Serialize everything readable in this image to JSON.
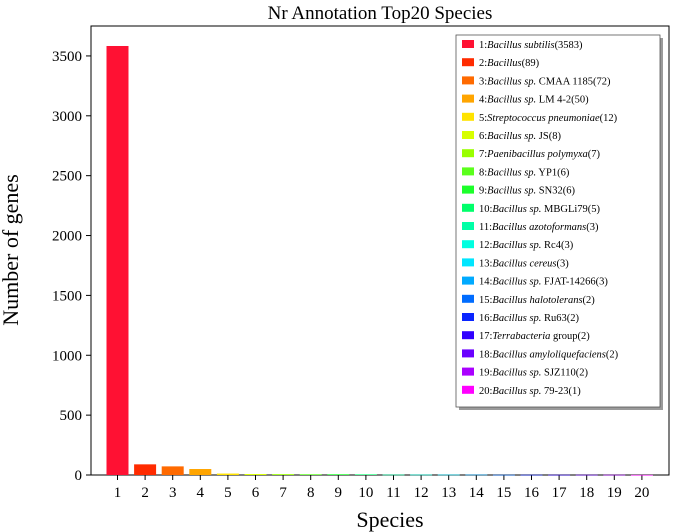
{
  "chart_data": {
    "type": "bar",
    "title": "Nr Annotation Top20 Species",
    "xlabel": "Species",
    "ylabel": "Number of genes",
    "ylim": [
      0,
      3750
    ],
    "yticks": [
      0,
      500,
      1000,
      1500,
      2000,
      2500,
      3000,
      3500
    ],
    "categories": [
      "1",
      "2",
      "3",
      "4",
      "5",
      "6",
      "7",
      "8",
      "9",
      "10",
      "11",
      "12",
      "13",
      "14",
      "15",
      "16",
      "17",
      "18",
      "19",
      "20"
    ],
    "values": [
      3583,
      89,
      72,
      50,
      12,
      8,
      7,
      6,
      6,
      5,
      3,
      3,
      3,
      3,
      2,
      2,
      2,
      2,
      2,
      1
    ],
    "colors": [
      "#ff1133",
      "#ff2b00",
      "#ff6a00",
      "#ffa500",
      "#ffe300",
      "#d7ff00",
      "#99ff00",
      "#5bff1c",
      "#1cff2a",
      "#00ff6a",
      "#00ffa6",
      "#00ffe0",
      "#00e6ff",
      "#00aaff",
      "#006cff",
      "#0a25ff",
      "#3000ff",
      "#6a00ff",
      "#aa00ff",
      "#ff00ff"
    ],
    "legend_position": "top-right",
    "legend": [
      {
        "num": "1:",
        "name": "Bacillus subtilis",
        "suffix": "(3583)"
      },
      {
        "num": "2:",
        "name": "Bacillus",
        "suffix": "(89)"
      },
      {
        "num": "3:",
        "name": "Bacillus sp.",
        "suffix": " CMAA 1185(72)"
      },
      {
        "num": "4:",
        "name": "Bacillus sp.",
        "suffix": " LM 4-2(50)"
      },
      {
        "num": "5:",
        "name": "Streptococcus pneumoniae",
        "suffix": "(12)"
      },
      {
        "num": "6:",
        "name": "Bacillus sp.",
        "suffix": " JS(8)"
      },
      {
        "num": "7:",
        "name": "Paenibacillus polymyxa",
        "suffix": "(7)"
      },
      {
        "num": "8:",
        "name": "Bacillus sp.",
        "suffix": " YP1(6)"
      },
      {
        "num": "9:",
        "name": "Bacillus sp.",
        "suffix": " SN32(6)"
      },
      {
        "num": "10:",
        "name": "Bacillus sp.",
        "suffix": " MBGLi79(5)"
      },
      {
        "num": "11:",
        "name": "Bacillus azotoformans",
        "suffix": "(3)"
      },
      {
        "num": "12:",
        "name": "Bacillus sp.",
        "suffix": " Rc4(3)"
      },
      {
        "num": "13:",
        "name": "Bacillus cereus",
        "suffix": "(3)"
      },
      {
        "num": "14:",
        "name": "Bacillus sp.",
        "suffix": " FJAT-14266(3)"
      },
      {
        "num": "15:",
        "name": "Bacillus halotolerans",
        "suffix": "(2)"
      },
      {
        "num": "16:",
        "name": "Bacillus sp.",
        "suffix": " Ru63(2)"
      },
      {
        "num": "17:",
        "name": "Terrabacteria",
        "suffix": " group(2)"
      },
      {
        "num": "18:",
        "name": "Bacillus amyloliquefaciens",
        "suffix": "(2)"
      },
      {
        "num": "19:",
        "name": "Bacillus sp.",
        "suffix": " SJZ110(2)"
      },
      {
        "num": "20:",
        "name": "Bacillus sp.",
        "suffix": " 79-23(1)"
      }
    ]
  }
}
